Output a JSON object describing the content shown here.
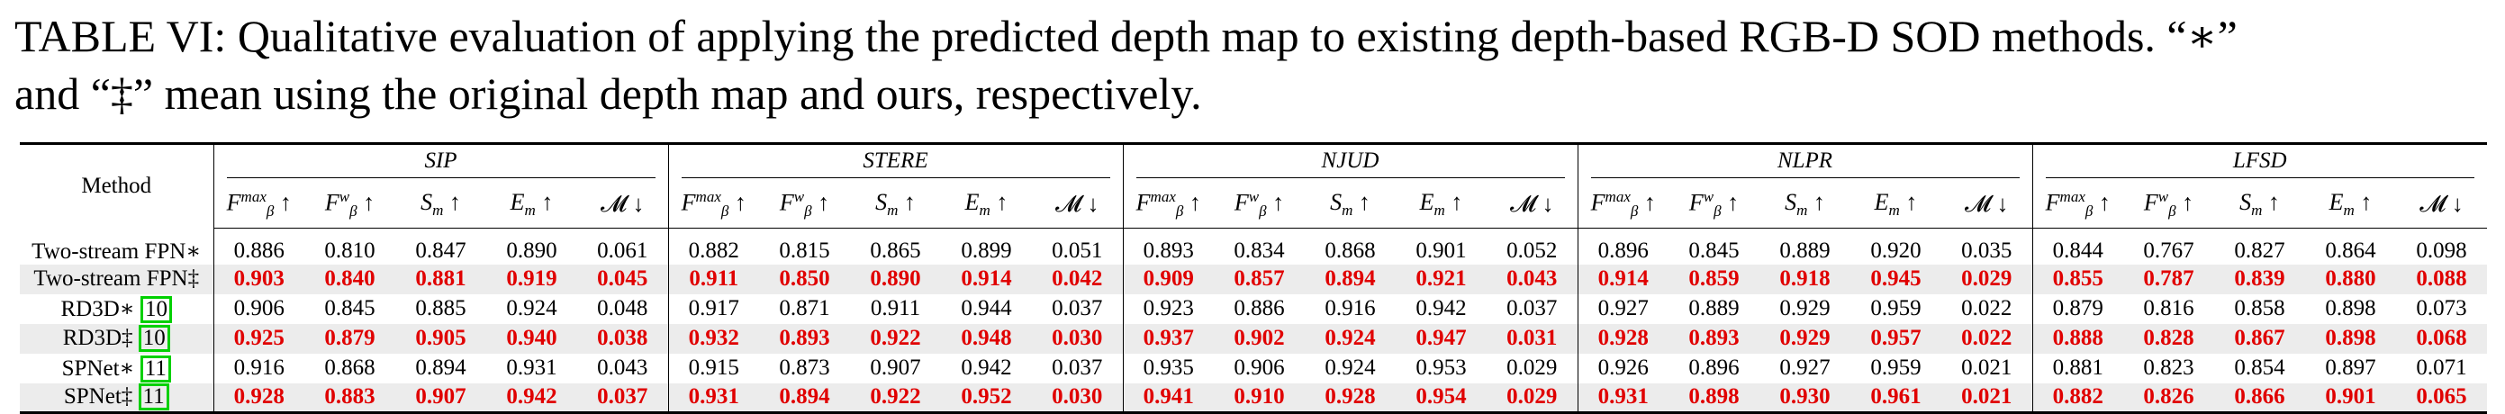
{
  "caption": {
    "line1": "TABLE VI: Qualitative evaluation of applying the predicted depth map to existing depth-based RGB-D SOD methods. “∗”",
    "line2": "and “‡” mean using the original depth map and ours, respectively."
  },
  "table": {
    "method_header": "Method",
    "datasets": [
      "SIP",
      "STERE",
      "NJUD",
      "NLPR",
      "LFSD"
    ],
    "metrics": [
      "F_β^max ↑",
      "F_β^w ↑",
      "S_m ↑",
      "E_m ↑",
      "𝓜 ↓"
    ],
    "rows": [
      {
        "method": "Two-stream FPN∗",
        "cite": "",
        "best": false,
        "values": [
          "0.886",
          "0.810",
          "0.847",
          "0.890",
          "0.061",
          "0.882",
          "0.815",
          "0.865",
          "0.899",
          "0.051",
          "0.893",
          "0.834",
          "0.868",
          "0.901",
          "0.052",
          "0.896",
          "0.845",
          "0.889",
          "0.920",
          "0.035",
          "0.844",
          "0.767",
          "0.827",
          "0.864",
          "0.098"
        ]
      },
      {
        "method": "Two-stream FPN‡",
        "cite": "",
        "best": true,
        "values": [
          "0.903",
          "0.840",
          "0.881",
          "0.919",
          "0.045",
          "0.911",
          "0.850",
          "0.890",
          "0.914",
          "0.042",
          "0.909",
          "0.857",
          "0.894",
          "0.921",
          "0.043",
          "0.914",
          "0.859",
          "0.918",
          "0.945",
          "0.029",
          "0.855",
          "0.787",
          "0.839",
          "0.880",
          "0.088"
        ]
      },
      {
        "method": "RD3D∗ ",
        "cite": "10",
        "best": false,
        "values": [
          "0.906",
          "0.845",
          "0.885",
          "0.924",
          "0.048",
          "0.917",
          "0.871",
          "0.911",
          "0.944",
          "0.037",
          "0.923",
          "0.886",
          "0.916",
          "0.942",
          "0.037",
          "0.927",
          "0.889",
          "0.929",
          "0.959",
          "0.022",
          "0.879",
          "0.816",
          "0.858",
          "0.898",
          "0.073"
        ]
      },
      {
        "method": "RD3D‡ ",
        "cite": "10",
        "best": true,
        "values": [
          "0.925",
          "0.879",
          "0.905",
          "0.940",
          "0.038",
          "0.932",
          "0.893",
          "0.922",
          "0.948",
          "0.030",
          "0.937",
          "0.902",
          "0.924",
          "0.947",
          "0.031",
          "0.928",
          "0.893",
          "0.929",
          "0.957",
          "0.022",
          "0.888",
          "0.828",
          "0.867",
          "0.898",
          "0.068"
        ]
      },
      {
        "method": "SPNet∗ ",
        "cite": "11",
        "best": false,
        "values": [
          "0.916",
          "0.868",
          "0.894",
          "0.931",
          "0.043",
          "0.915",
          "0.873",
          "0.907",
          "0.942",
          "0.037",
          "0.935",
          "0.906",
          "0.924",
          "0.953",
          "0.029",
          "0.926",
          "0.896",
          "0.927",
          "0.959",
          "0.021",
          "0.881",
          "0.823",
          "0.854",
          "0.897",
          "0.071"
        ]
      },
      {
        "method": "SPNet‡ ",
        "cite": "11",
        "best": true,
        "values": [
          "0.928",
          "0.883",
          "0.907",
          "0.942",
          "0.037",
          "0.931",
          "0.894",
          "0.922",
          "0.952",
          "0.030",
          "0.941",
          "0.910",
          "0.928",
          "0.954",
          "0.029",
          "0.931",
          "0.898",
          "0.930",
          "0.961",
          "0.021",
          "0.882",
          "0.826",
          "0.866",
          "0.901",
          "0.065"
        ]
      }
    ],
    "highlight_color": "#e00000",
    "cite_box_color": "#00d000",
    "shade_color": "#ececec"
  }
}
